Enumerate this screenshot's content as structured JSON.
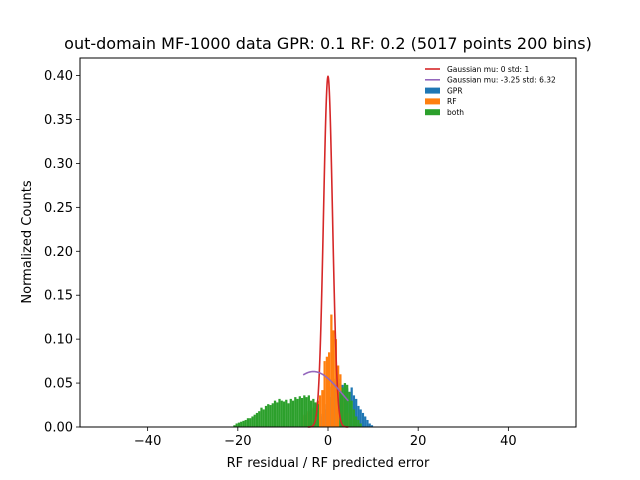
{
  "chart_data": {
    "type": "histogram",
    "title": "out-domain MF-1000 data GPR: 0.1 RF: 0.2 (5017 points 200 bins)",
    "xlabel": "RF residual / RF predicted error",
    "ylabel": "Normalized Counts",
    "xlim": [
      -55,
      55
    ],
    "ylim": [
      0,
      0.42
    ],
    "xticks": [
      -40,
      -20,
      0,
      20,
      40
    ],
    "xtick_labels": [
      "−40",
      "−20",
      "0",
      "20",
      "40"
    ],
    "yticks": [
      0.0,
      0.05,
      0.1,
      0.15,
      0.2,
      0.25,
      0.3,
      0.35,
      0.4
    ],
    "ytick_labels": [
      "0.00",
      "0.05",
      "0.10",
      "0.15",
      "0.20",
      "0.25",
      "0.30",
      "0.35",
      "0.40"
    ],
    "grid": false,
    "legend_position": "top-right",
    "bin_width": 0.5,
    "series": [
      {
        "name": "GPR",
        "kind": "bar",
        "color": "#1f77b4",
        "bins": [
          [
            -4.0,
            0.004
          ],
          [
            -3.5,
            0.006
          ],
          [
            -3.0,
            0.008
          ],
          [
            -2.5,
            0.01
          ],
          [
            -2.0,
            0.012
          ],
          [
            -1.5,
            0.015
          ],
          [
            -1.0,
            0.02
          ],
          [
            -0.5,
            0.026
          ],
          [
            0.0,
            0.034
          ],
          [
            0.5,
            0.046
          ],
          [
            1.0,
            0.052
          ],
          [
            1.5,
            0.055
          ],
          [
            2.0,
            0.05
          ],
          [
            2.5,
            0.055
          ],
          [
            3.0,
            0.048
          ],
          [
            3.5,
            0.046
          ],
          [
            4.0,
            0.044
          ],
          [
            4.5,
            0.04
          ],
          [
            5.0,
            0.045
          ],
          [
            5.5,
            0.036
          ],
          [
            6.0,
            0.032
          ],
          [
            6.5,
            0.024
          ],
          [
            7.0,
            0.02
          ],
          [
            7.5,
            0.016
          ],
          [
            8.0,
            0.012
          ],
          [
            8.5,
            0.008
          ],
          [
            9.0,
            0.004
          ],
          [
            9.5,
            0.002
          ]
        ]
      },
      {
        "name": "RF",
        "kind": "bar",
        "color": "#ff7f0e",
        "bins": [
          [
            -6.0,
            0.012
          ],
          [
            -5.5,
            0.014
          ],
          [
            -5.0,
            0.016
          ],
          [
            -4.5,
            0.018
          ],
          [
            -4.0,
            0.02
          ],
          [
            -3.5,
            0.022
          ],
          [
            -3.0,
            0.026
          ],
          [
            -2.5,
            0.03
          ],
          [
            -2.0,
            0.036
          ],
          [
            -1.5,
            0.042
          ],
          [
            -1.0,
            0.075
          ],
          [
            -0.5,
            0.08
          ],
          [
            0.0,
            0.085
          ],
          [
            0.5,
            0.128
          ],
          [
            1.0,
            0.11
          ],
          [
            1.5,
            0.1
          ],
          [
            2.0,
            0.07
          ],
          [
            2.5,
            0.06
          ],
          [
            3.0,
            0.04
          ],
          [
            3.5,
            0.028
          ],
          [
            4.0,
            0.016
          ],
          [
            4.5,
            0.008
          ]
        ]
      },
      {
        "name": "both",
        "kind": "bar",
        "color": "#2ca02c",
        "bins": [
          [
            -21.0,
            0.002
          ],
          [
            -20.5,
            0.004
          ],
          [
            -20.0,
            0.005
          ],
          [
            -19.5,
            0.006
          ],
          [
            -19.0,
            0.007
          ],
          [
            -18.5,
            0.008
          ],
          [
            -18.0,
            0.01
          ],
          [
            -17.5,
            0.01
          ],
          [
            -17.0,
            0.012
          ],
          [
            -16.5,
            0.014
          ],
          [
            -16.0,
            0.016
          ],
          [
            -15.5,
            0.018
          ],
          [
            -15.0,
            0.022
          ],
          [
            -14.5,
            0.02
          ],
          [
            -14.0,
            0.024
          ],
          [
            -13.5,
            0.026
          ],
          [
            -13.0,
            0.025
          ],
          [
            -12.5,
            0.027
          ],
          [
            -12.0,
            0.03
          ],
          [
            -11.5,
            0.028
          ],
          [
            -11.0,
            0.032
          ],
          [
            -10.5,
            0.03
          ],
          [
            -10.0,
            0.029
          ],
          [
            -9.5,
            0.031
          ],
          [
            -9.0,
            0.027
          ],
          [
            -8.5,
            0.032
          ],
          [
            -8.0,
            0.03
          ],
          [
            -7.5,
            0.034
          ],
          [
            -7.0,
            0.032
          ],
          [
            -6.5,
            0.035
          ],
          [
            -6.0,
            0.033
          ],
          [
            -5.5,
            0.036
          ],
          [
            -5.0,
            0.034
          ],
          [
            -4.5,
            0.036
          ],
          [
            -4.0,
            0.03
          ],
          [
            -3.5,
            0.032
          ],
          [
            -3.0,
            0.028
          ],
          [
            -2.5,
            0.026
          ],
          [
            2.5,
            0.04
          ],
          [
            3.0,
            0.045
          ],
          [
            3.5,
            0.05
          ],
          [
            4.0,
            0.048
          ],
          [
            4.5,
            0.04
          ],
          [
            5.0,
            0.03
          ],
          [
            5.5,
            0.02
          ],
          [
            6.0,
            0.012
          ],
          [
            6.5,
            0.008
          ],
          [
            7.0,
            0.004
          ]
        ]
      },
      {
        "name": "Gaussian mu: 0 std: 1",
        "kind": "line",
        "color": "#d62728",
        "mu": 0,
        "std": 1
      },
      {
        "name": "Gaussian mu: -3.25 std: 6.32",
        "kind": "line",
        "color": "#9467bd",
        "mu": -3.25,
        "std": 6.32,
        "x_range": [
          -5.5,
          4.5
        ]
      }
    ]
  }
}
